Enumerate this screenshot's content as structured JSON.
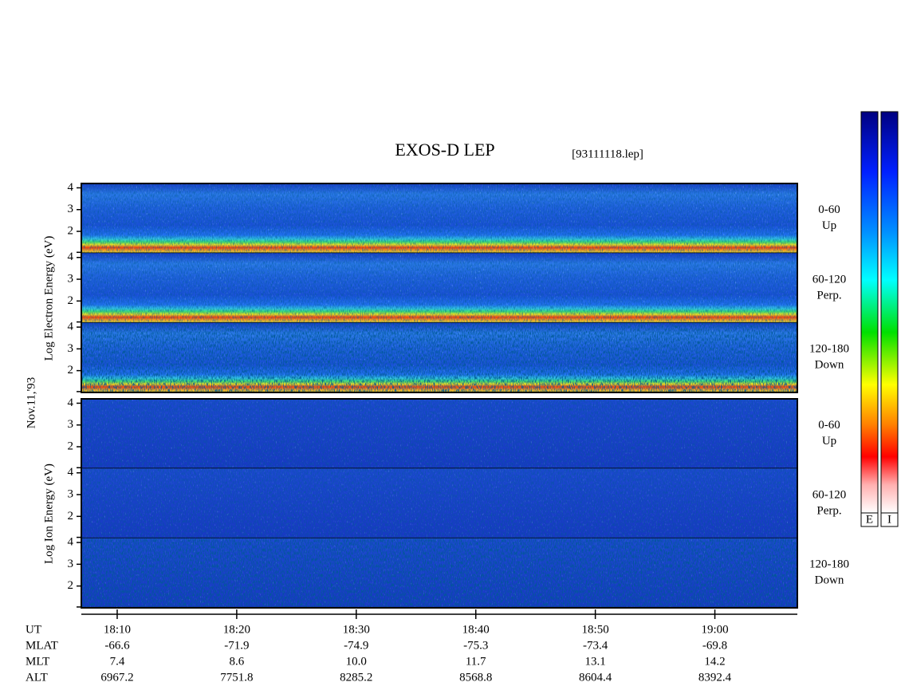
{
  "chart_data": {
    "type": "spectrogram",
    "title": "EXOS-D LEP",
    "subtitle": "[93111118.lep]",
    "date_label": "Nov.11,'93",
    "xlabel": "UT",
    "xlim": [
      1087,
      1146.9
    ],
    "xticks": [
      {
        "value": 1090,
        "label": "18:10"
      },
      {
        "value": 1100,
        "label": "18:20"
      },
      {
        "value": 1110,
        "label": "18:30"
      },
      {
        "value": 1120,
        "label": "18:40"
      },
      {
        "value": 1130,
        "label": "18:50"
      },
      {
        "value": 1140,
        "label": "19:00"
      }
    ],
    "ylim": [
      1,
      4.2
    ],
    "yticks": [
      2,
      3,
      4
    ],
    "groups": [
      {
        "ylabel": "Log Electron Energy (eV)",
        "species": "electron",
        "panels": [
          {
            "label": [
              "0-60",
              "Up"
            ]
          },
          {
            "label": [
              "60-120",
              "Perp."
            ]
          },
          {
            "label": [
              "120-180",
              "Down"
            ]
          }
        ]
      },
      {
        "ylabel": "Log Ion Energy (eV)",
        "species": "ion",
        "panels": [
          {
            "label": [
              "0-60",
              "Up"
            ]
          },
          {
            "label": [
              "60-120",
              "Perp."
            ]
          },
          {
            "label": [
              "120-180",
              "Down"
            ]
          }
        ]
      }
    ],
    "ephemeris": [
      {
        "name": "MLAT",
        "values": [
          -66.6,
          -71.9,
          -74.9,
          -75.3,
          -73.4,
          -69.8
        ]
      },
      {
        "name": "MLT",
        "values": [
          7.4,
          8.6,
          10.0,
          11.7,
          13.1,
          14.2
        ],
        "value_labels": [
          "7.4",
          "8.6",
          "10.0",
          "11.7",
          "13.1",
          "14.2"
        ]
      },
      {
        "name": "ALT",
        "values": [
          6967.2,
          7751.8,
          8285.2,
          8568.8,
          8604.4,
          8392.4
        ]
      }
    ],
    "colorbar_labels": [
      "E",
      "I"
    ]
  }
}
